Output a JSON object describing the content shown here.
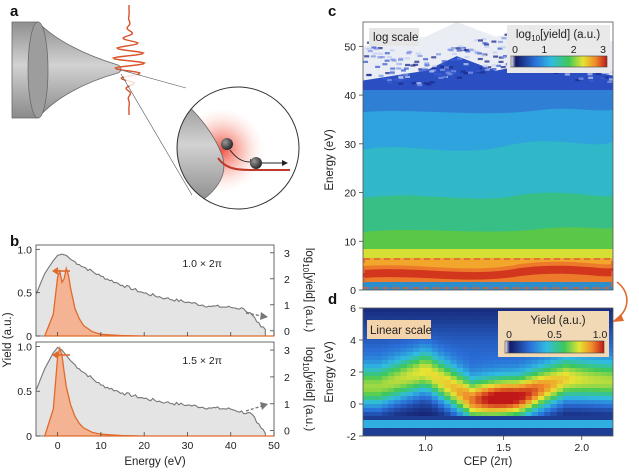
{
  "panels": {
    "a": {
      "label": "a"
    },
    "b": {
      "label": "b",
      "top_annotation": "1.0 × 2π",
      "bottom_annotation": "1.5 × 2π",
      "ylabel_left": "Yield (a.u.)",
      "ylabel_right": "log10[yield] (a.u.)",
      "xlabel": "Energy (eV)",
      "x_ticks": [
        "0",
        "10",
        "20",
        "30",
        "40",
        "50"
      ],
      "left_ticks": [
        "0",
        "0.5",
        "1.0"
      ],
      "right_ticks": [
        "0",
        "1",
        "2",
        "3"
      ]
    },
    "c": {
      "label": "c",
      "scale_label": "log scale",
      "colorbar_title": "log10[yield] (a.u.)",
      "colorbar_ticks": [
        "0",
        "1",
        "2",
        "3"
      ],
      "ylabel": "Energy (eV)",
      "y_ticks": [
        "0",
        "10",
        "20",
        "30",
        "40",
        "50"
      ]
    },
    "d": {
      "label": "d",
      "scale_label": "Linear scale",
      "colorbar_title": "Yield (a.u.)",
      "colorbar_ticks": [
        "0",
        "0.5",
        "1.0"
      ],
      "ylabel": "Energy (eV)",
      "xlabel": "CEP (2π)",
      "y_ticks": [
        "-2",
        "0",
        "2",
        "4",
        "6"
      ],
      "x_ticks": [
        "1.0",
        "1.5",
        "2.0"
      ]
    }
  },
  "colors": {
    "orange": "#e06a2c",
    "orange_fill": "#f4b493",
    "gray_curve": "#777777",
    "gray_fill": "#e4e4e4",
    "dashed_box": "#d9643a"
  },
  "chart_data": [
    {
      "type": "area",
      "title": "",
      "annotation": "1.0 × 2π",
      "xlabel": "Energy (eV)",
      "ylabel": "Yield (a.u.)",
      "ylabel_right": "log10[yield] (a.u.)",
      "xlim": [
        -5,
        50
      ],
      "ylim": [
        0,
        1.05
      ],
      "ylim_right": [
        -0.2,
        3.3
      ],
      "series": [
        {
          "axis": "left",
          "x": [
            -3,
            -1,
            0,
            0.5,
            1,
            1.5,
            2,
            2.5,
            3,
            4,
            5,
            6,
            8,
            10,
            15,
            20,
            50
          ],
          "values": [
            0,
            0.25,
            0.68,
            0.75,
            0.62,
            0.66,
            0.78,
            0.7,
            0.55,
            0.32,
            0.2,
            0.12,
            0.05,
            0.02,
            0.005,
            0,
            0
          ]
        },
        {
          "axis": "right",
          "x": [
            -5,
            -3,
            -1,
            0,
            1,
            2,
            3,
            5,
            10,
            15,
            20,
            25,
            30,
            35,
            40,
            43,
            45,
            46,
            47,
            48
          ],
          "values": [
            1.4,
            2.2,
            2.7,
            2.9,
            2.95,
            2.9,
            2.75,
            2.55,
            2.1,
            1.75,
            1.45,
            1.25,
            1.1,
            0.95,
            0.9,
            0.85,
            0.6,
            0.35,
            0.15,
            0.05
          ]
        }
      ]
    },
    {
      "type": "area",
      "title": "",
      "annotation": "1.5 × 2π",
      "xlabel": "Energy (eV)",
      "ylabel": "Yield (a.u.)",
      "ylabel_right": "log10[yield] (a.u.)",
      "xlim": [
        -5,
        50
      ],
      "ylim": [
        0,
        1.05
      ],
      "ylim_right": [
        -0.2,
        3.3
      ],
      "series": [
        {
          "axis": "left",
          "x": [
            -3,
            -1,
            0,
            0.5,
            1,
            1.5,
            2,
            3,
            4,
            5,
            6,
            8,
            10,
            15,
            20,
            50
          ],
          "values": [
            0,
            0.3,
            0.88,
            0.98,
            0.9,
            0.72,
            0.55,
            0.35,
            0.22,
            0.14,
            0.09,
            0.04,
            0.02,
            0.005,
            0,
            0
          ]
        },
        {
          "axis": "right",
          "x": [
            -5,
            -3,
            -1,
            0,
            1,
            2,
            3,
            5,
            10,
            15,
            20,
            25,
            30,
            35,
            40,
            45,
            46,
            47,
            48
          ],
          "values": [
            1.5,
            2.3,
            2.9,
            3.1,
            3.0,
            2.8,
            2.6,
            2.3,
            1.7,
            1.4,
            1.2,
            1.05,
            0.95,
            0.85,
            0.8,
            0.6,
            0.3,
            0.1,
            -0.1
          ]
        }
      ]
    },
    {
      "type": "heatmap",
      "title": "",
      "scale": "log",
      "xlabel": "CEP (2π)",
      "ylabel": "Energy (eV)",
      "xlim": [
        0.6,
        2.2
      ],
      "ylim": [
        0,
        55
      ],
      "colorbar_range": [
        0,
        3
      ],
      "cutoff_energy": [
        [
          0.6,
          43
        ],
        [
          1.0,
          45
        ],
        [
          1.2,
          48
        ],
        [
          1.45,
          45
        ],
        [
          1.75,
          47
        ],
        [
          2.2,
          44
        ]
      ],
      "highlight_box_energy": [
        -1,
        5
      ]
    },
    {
      "type": "heatmap",
      "title": "",
      "scale": "linear",
      "xlabel": "CEP (2π)",
      "ylabel": "Energy (eV)",
      "xlim": [
        0.6,
        2.2
      ],
      "ylim": [
        -2,
        6
      ],
      "colorbar_range": [
        0,
        1.0
      ],
      "peak_ridge": [
        [
          0.7,
          1.0
        ],
        [
          1.0,
          2.0
        ],
        [
          1.3,
          0.2
        ],
        [
          1.6,
          0.4
        ],
        [
          1.9,
          1.5
        ],
        [
          2.2,
          1.3
        ]
      ]
    }
  ]
}
